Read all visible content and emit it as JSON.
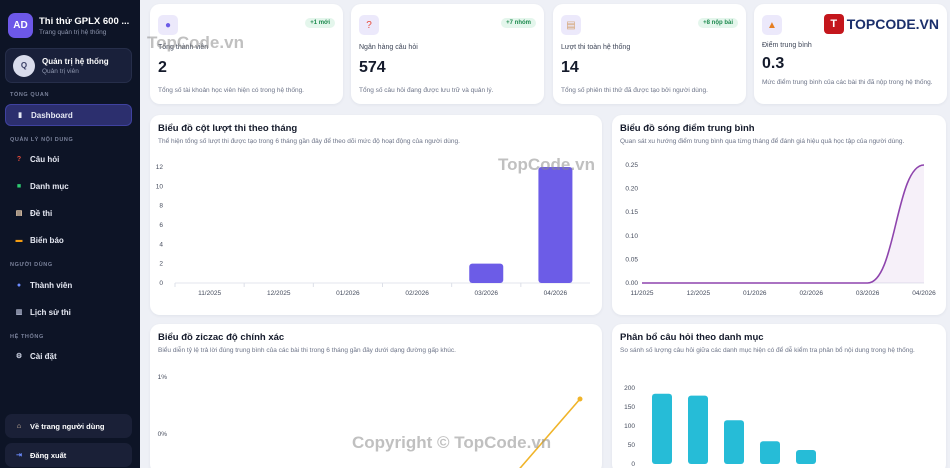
{
  "sidebar": {
    "brand_initials": "AD",
    "brand_title": "Thi thử GPLX 600 ...",
    "brand_subtitle": "Trang quản trị hệ thống",
    "user_initial": "Q",
    "user_name": "Quản trị hệ thống",
    "user_role": "Quản trị viên",
    "sections": {
      "overview": "TỔNG QUAN",
      "content": "QUẢN LÝ NỘI DUNG",
      "users": "NGƯỜI DÙNG",
      "system": "HỆ THỐNG"
    },
    "items": {
      "dashboard": "Dashboard",
      "questions": "Câu hỏi",
      "categories": "Danh mục",
      "exams": "Đề thi",
      "signs": "Biển báo",
      "members": "Thành viên",
      "history": "Lịch sử thi",
      "settings": "Cài đặt"
    },
    "back_to_user": "Về trang người dùng",
    "logout": "Đăng xuất"
  },
  "stats": [
    {
      "label": "Tổng thành viên",
      "value": "2",
      "badge": "+1 mới",
      "desc": "Tổng số tài khoản học viên hiện có trong hệ thống.",
      "icon": "users-icon"
    },
    {
      "label": "Ngân hàng câu hỏi",
      "value": "574",
      "badge": "+7 nhóm",
      "desc": "Tổng số câu hỏi đang được lưu trữ và quản lý.",
      "icon": "question-icon"
    },
    {
      "label": "Lượt thi toàn hệ thống",
      "value": "14",
      "badge": "+8 nộp bài",
      "desc": "Tổng số phiên thi thử đã được tạo bởi người dùng.",
      "icon": "exam-icon"
    },
    {
      "label": "Điểm trung bình",
      "value": "0.3",
      "badge": "",
      "desc": "Mức điểm trung bình của các bài thi đã nộp trong hệ thống.",
      "icon": "score-icon"
    }
  ],
  "charts": {
    "bar_title": "Biểu đồ cột lượt thi theo tháng",
    "bar_sub": "Thể hiện tổng số lượt thi được tạo trong 6 tháng gần đây để theo dõi mức độ hoạt động của người dùng.",
    "wave_title": "Biểu đồ sóng điểm trung bình",
    "wave_sub": "Quan sát xu hướng điểm trung bình qua từng tháng để đánh giá hiệu quả học tập của người dùng.",
    "zig_title": "Biểu đồ ziczac độ chính xác",
    "zig_sub": "Biểu diễn tỷ lệ trả lời đúng trung bình của các bài thi trong 6 tháng gần đây dưới dạng đường gấp khúc.",
    "cat_title": "Phân bổ câu hỏi theo danh mục",
    "cat_sub": "So sánh số lượng câu hỏi giữa các danh mục hiện có để dễ kiểm tra phân bổ nội dung trong hệ thống."
  },
  "chart_data": [
    {
      "type": "bar",
      "categories": [
        "11/2025",
        "12/2025",
        "01/2026",
        "02/2026",
        "03/2026",
        "04/2026"
      ],
      "values": [
        0,
        0,
        0,
        0,
        2,
        12
      ],
      "ylim": [
        0,
        12
      ],
      "yticks": [
        "0",
        "2",
        "4",
        "6",
        "8",
        "10",
        "12"
      ],
      "color": "#6c5ce7"
    },
    {
      "type": "area",
      "categories": [
        "11/2025",
        "12/2025",
        "01/2026",
        "02/2026",
        "03/2026",
        "04/2026"
      ],
      "values": [
        0,
        0,
        0,
        0,
        0,
        0.25
      ],
      "ylim": [
        0,
        0.25
      ],
      "yticks": [
        "0.00",
        "0.05",
        "0.10",
        "0.15",
        "0.20",
        "0.25"
      ],
      "color": "#8e44ad"
    },
    {
      "type": "line",
      "yticks_visible": [
        "1%",
        "0%"
      ],
      "color": "#f0b429"
    },
    {
      "type": "bar",
      "values": [
        185,
        180,
        115,
        60,
        37
      ],
      "ylim": [
        0,
        200
      ],
      "yticks": [
        "0",
        "50",
        "100",
        "150",
        "200"
      ],
      "color": "#26bcd7"
    }
  ],
  "watermarks": {
    "tl": "TopCode.vn",
    "center": "TopCode.vn",
    "copyright": "Copyright © TopCode.vn",
    "logo": "TOPCODE.VN"
  }
}
